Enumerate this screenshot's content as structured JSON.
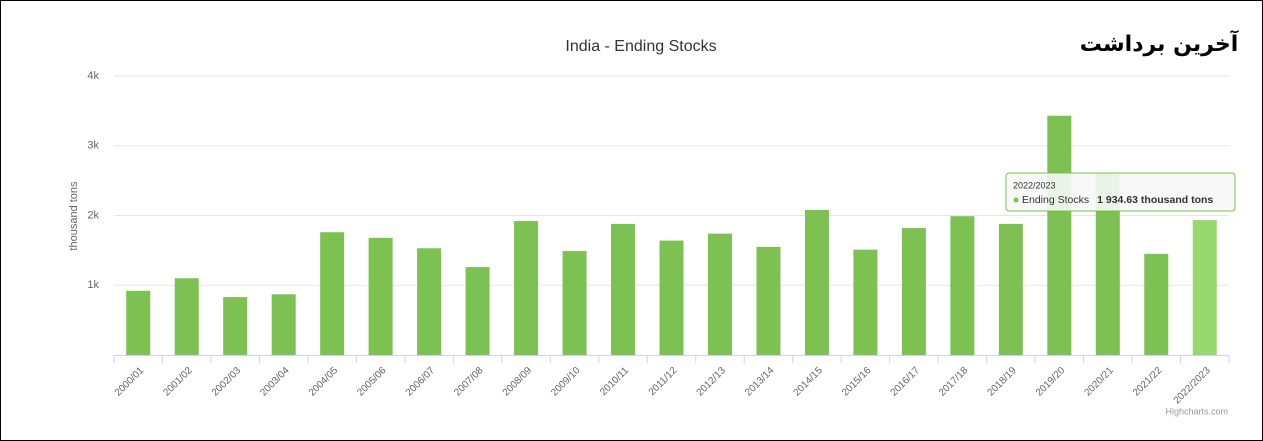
{
  "heading": "آخرین برداشت",
  "chart_data": {
    "type": "bar",
    "title": "India - Ending Stocks",
    "y_label": "thousand tons",
    "categories": [
      "2000/01",
      "2001/02",
      "2002/03",
      "2003/04",
      "2004/05",
      "2005/06",
      "2006/07",
      "2007/08",
      "2008/09",
      "2009/10",
      "2010/11",
      "2011/12",
      "2012/13",
      "2013/14",
      "2014/15",
      "2015/16",
      "2016/17",
      "2017/18",
      "2018/19",
      "2019/20",
      "2020/21",
      "2021/22",
      "2022/2023"
    ],
    "series": [
      {
        "name": "Ending Stocks",
        "color": "#7cc152",
        "highlight_color": "#98d86c",
        "values": [
          920,
          1100,
          830,
          870,
          1760,
          1680,
          1530,
          1260,
          1920,
          1490,
          1880,
          1640,
          1740,
          1550,
          2080,
          1510,
          1820,
          1990,
          1880,
          3430,
          2610,
          1450,
          1934.63
        ]
      }
    ],
    "ylim": [
      0,
      4000
    ],
    "yticks": [
      {
        "value": 1000,
        "label": "1k"
      },
      {
        "value": 2000,
        "label": "2k"
      },
      {
        "value": 3000,
        "label": "3k"
      },
      {
        "value": 4000,
        "label": "4k"
      }
    ],
    "grid": true,
    "tooltip": {
      "value": "1 934.63 thousand tons"
    },
    "credits": "Highcharts.com"
  }
}
